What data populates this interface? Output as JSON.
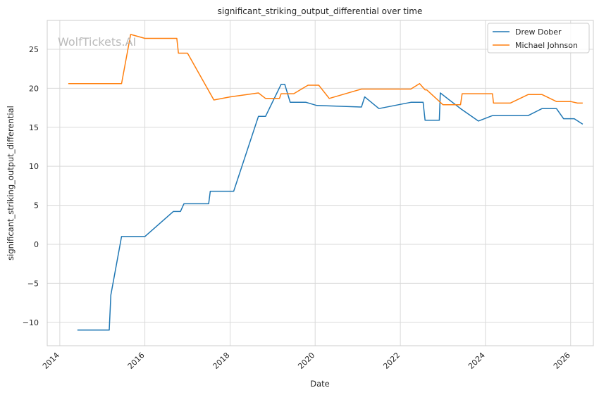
{
  "watermark": "WolfTickets.AI",
  "chart_data": {
    "type": "line",
    "title": "significant_striking_output_differential over time",
    "xlabel": "Date",
    "ylabel": "significant_striking_output_differential",
    "xlim": [
      "2013-09-15",
      "2026-07-15"
    ],
    "ylim": [
      -13.0,
      28.7
    ],
    "x_ticks": [
      "2014",
      "2016",
      "2018",
      "2020",
      "2022",
      "2024",
      "2026"
    ],
    "y_ticks": [
      -10,
      -5,
      0,
      5,
      10,
      15,
      20,
      25
    ],
    "grid": true,
    "legend_position": "top-right",
    "series": [
      {
        "name": "Drew Dober",
        "color": "#1f77b4",
        "points": [
          [
            "2014-06-01",
            -11.0
          ],
          [
            "2015-03-01",
            -11.0
          ],
          [
            "2015-03-15",
            -6.5
          ],
          [
            "2015-06-15",
            1.0
          ],
          [
            "2016-01-01",
            1.0
          ],
          [
            "2016-09-01",
            4.2
          ],
          [
            "2016-11-01",
            4.2
          ],
          [
            "2016-12-01",
            5.2
          ],
          [
            "2017-07-01",
            5.2
          ],
          [
            "2017-07-15",
            6.8
          ],
          [
            "2018-02-01",
            6.8
          ],
          [
            "2018-09-01",
            16.4
          ],
          [
            "2018-11-01",
            16.4
          ],
          [
            "2019-03-15",
            20.5
          ],
          [
            "2019-04-15",
            20.5
          ],
          [
            "2019-06-01",
            18.2
          ],
          [
            "2019-10-15",
            18.2
          ],
          [
            "2020-01-15",
            17.8
          ],
          [
            "2021-02-01",
            17.6
          ],
          [
            "2021-03-01",
            18.9
          ],
          [
            "2021-07-01",
            17.4
          ],
          [
            "2022-04-01",
            18.2
          ],
          [
            "2022-07-15",
            18.2
          ],
          [
            "2022-08-01",
            15.9
          ],
          [
            "2022-12-01",
            15.9
          ],
          [
            "2022-12-10",
            19.4
          ],
          [
            "2023-06-01",
            17.4
          ],
          [
            "2023-11-01",
            15.8
          ],
          [
            "2024-03-01",
            16.5
          ],
          [
            "2025-01-01",
            16.5
          ],
          [
            "2025-05-01",
            17.4
          ],
          [
            "2025-09-01",
            17.4
          ],
          [
            "2025-11-01",
            16.1
          ],
          [
            "2026-02-01",
            16.1
          ],
          [
            "2026-04-15",
            15.4
          ]
        ]
      },
      {
        "name": "Michael Johnson",
        "color": "#ff7f0e",
        "points": [
          [
            "2014-03-15",
            20.6
          ],
          [
            "2015-06-15",
            20.6
          ],
          [
            "2015-09-01",
            26.9
          ],
          [
            "2016-01-01",
            26.4
          ],
          [
            "2016-10-01",
            26.4
          ],
          [
            "2016-10-15",
            24.5
          ],
          [
            "2017-01-01",
            24.5
          ],
          [
            "2017-08-15",
            18.5
          ],
          [
            "2018-01-01",
            18.9
          ],
          [
            "2018-09-01",
            19.4
          ],
          [
            "2018-11-01",
            18.7
          ],
          [
            "2019-03-01",
            18.7
          ],
          [
            "2019-03-15",
            19.3
          ],
          [
            "2019-07-01",
            19.3
          ],
          [
            "2019-11-01",
            20.4
          ],
          [
            "2020-02-01",
            20.4
          ],
          [
            "2020-05-01",
            18.7
          ],
          [
            "2021-02-01",
            19.9
          ],
          [
            "2022-04-01",
            19.9
          ],
          [
            "2022-06-15",
            20.6
          ],
          [
            "2022-08-01",
            19.8
          ],
          [
            "2022-08-15",
            19.8
          ],
          [
            "2023-01-01",
            17.9
          ],
          [
            "2023-06-01",
            17.9
          ],
          [
            "2023-06-15",
            19.3
          ],
          [
            "2024-03-01",
            19.3
          ],
          [
            "2024-03-10",
            18.1
          ],
          [
            "2024-08-01",
            18.1
          ],
          [
            "2025-01-01",
            19.2
          ],
          [
            "2025-05-01",
            19.2
          ],
          [
            "2025-09-01",
            18.3
          ],
          [
            "2026-01-01",
            18.3
          ],
          [
            "2026-03-01",
            18.1
          ],
          [
            "2026-04-15",
            18.1
          ]
        ]
      }
    ]
  }
}
